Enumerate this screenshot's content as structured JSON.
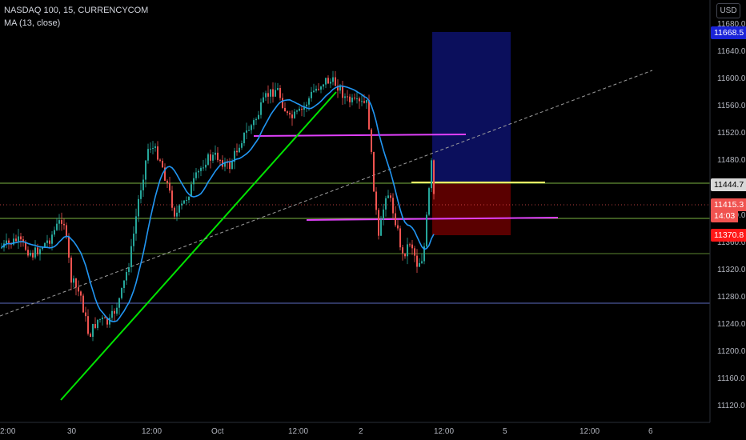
{
  "legend": {
    "symbol_line": "NASDAQ 100, 15, CURRENCYCOM",
    "ma_line": "MA (13, close)"
  },
  "currency_button": "USD",
  "price_axis": {
    "ticks": [
      "11680.0",
      "11640.0",
      "11600.0",
      "11560.0",
      "11520.0",
      "11480.0",
      "11400.0",
      "11360.0",
      "11320.0",
      "11280.0",
      "11240.0",
      "11200.0",
      "11160.0",
      "11120.0"
    ],
    "tick_values": [
      11680,
      11640,
      11600,
      11560,
      11520,
      11480,
      11400,
      11360,
      11320,
      11280,
      11240,
      11200,
      11160,
      11120
    ],
    "tags": [
      {
        "label": "11668.5",
        "value": 11668.5,
        "bg": "#1a23d8",
        "fg": "#ffffff"
      },
      {
        "label": "11444.7",
        "value": 11444.7,
        "bg": "#d8d8d8",
        "fg": "#000000"
      },
      {
        "label": "11415.3",
        "value": 11415.3,
        "bg": "#f05350",
        "fg": "#ffffff"
      },
      {
        "label": "14:03",
        "value": 11399,
        "bg": "#f05350",
        "fg": "#ffffff"
      },
      {
        "label": "11370.8",
        "value": 11370.8,
        "bg": "#ff1717",
        "fg": "#ffffff"
      }
    ],
    "min": 11100,
    "max": 11700
  },
  "time_axis": {
    "labels": [
      "2:00",
      "30",
      "12:00",
      "Oct",
      "12:00",
      "2",
      "12:00",
      "5",
      "12:00",
      "6"
    ]
  },
  "colors": {
    "background": "#000000",
    "candle_up": "#26a69a",
    "candle_down": "#ef5350",
    "ma": "#2196f3",
    "trendline": "#00e400",
    "magenta_line": "#e040fb",
    "hline_green": "#7cb342",
    "hline_blue": "#5c6bc0",
    "hline_yellow": "#ffff66",
    "target_zone": "#0b0f5c",
    "stop_zone": "#5a0000"
  }
}
